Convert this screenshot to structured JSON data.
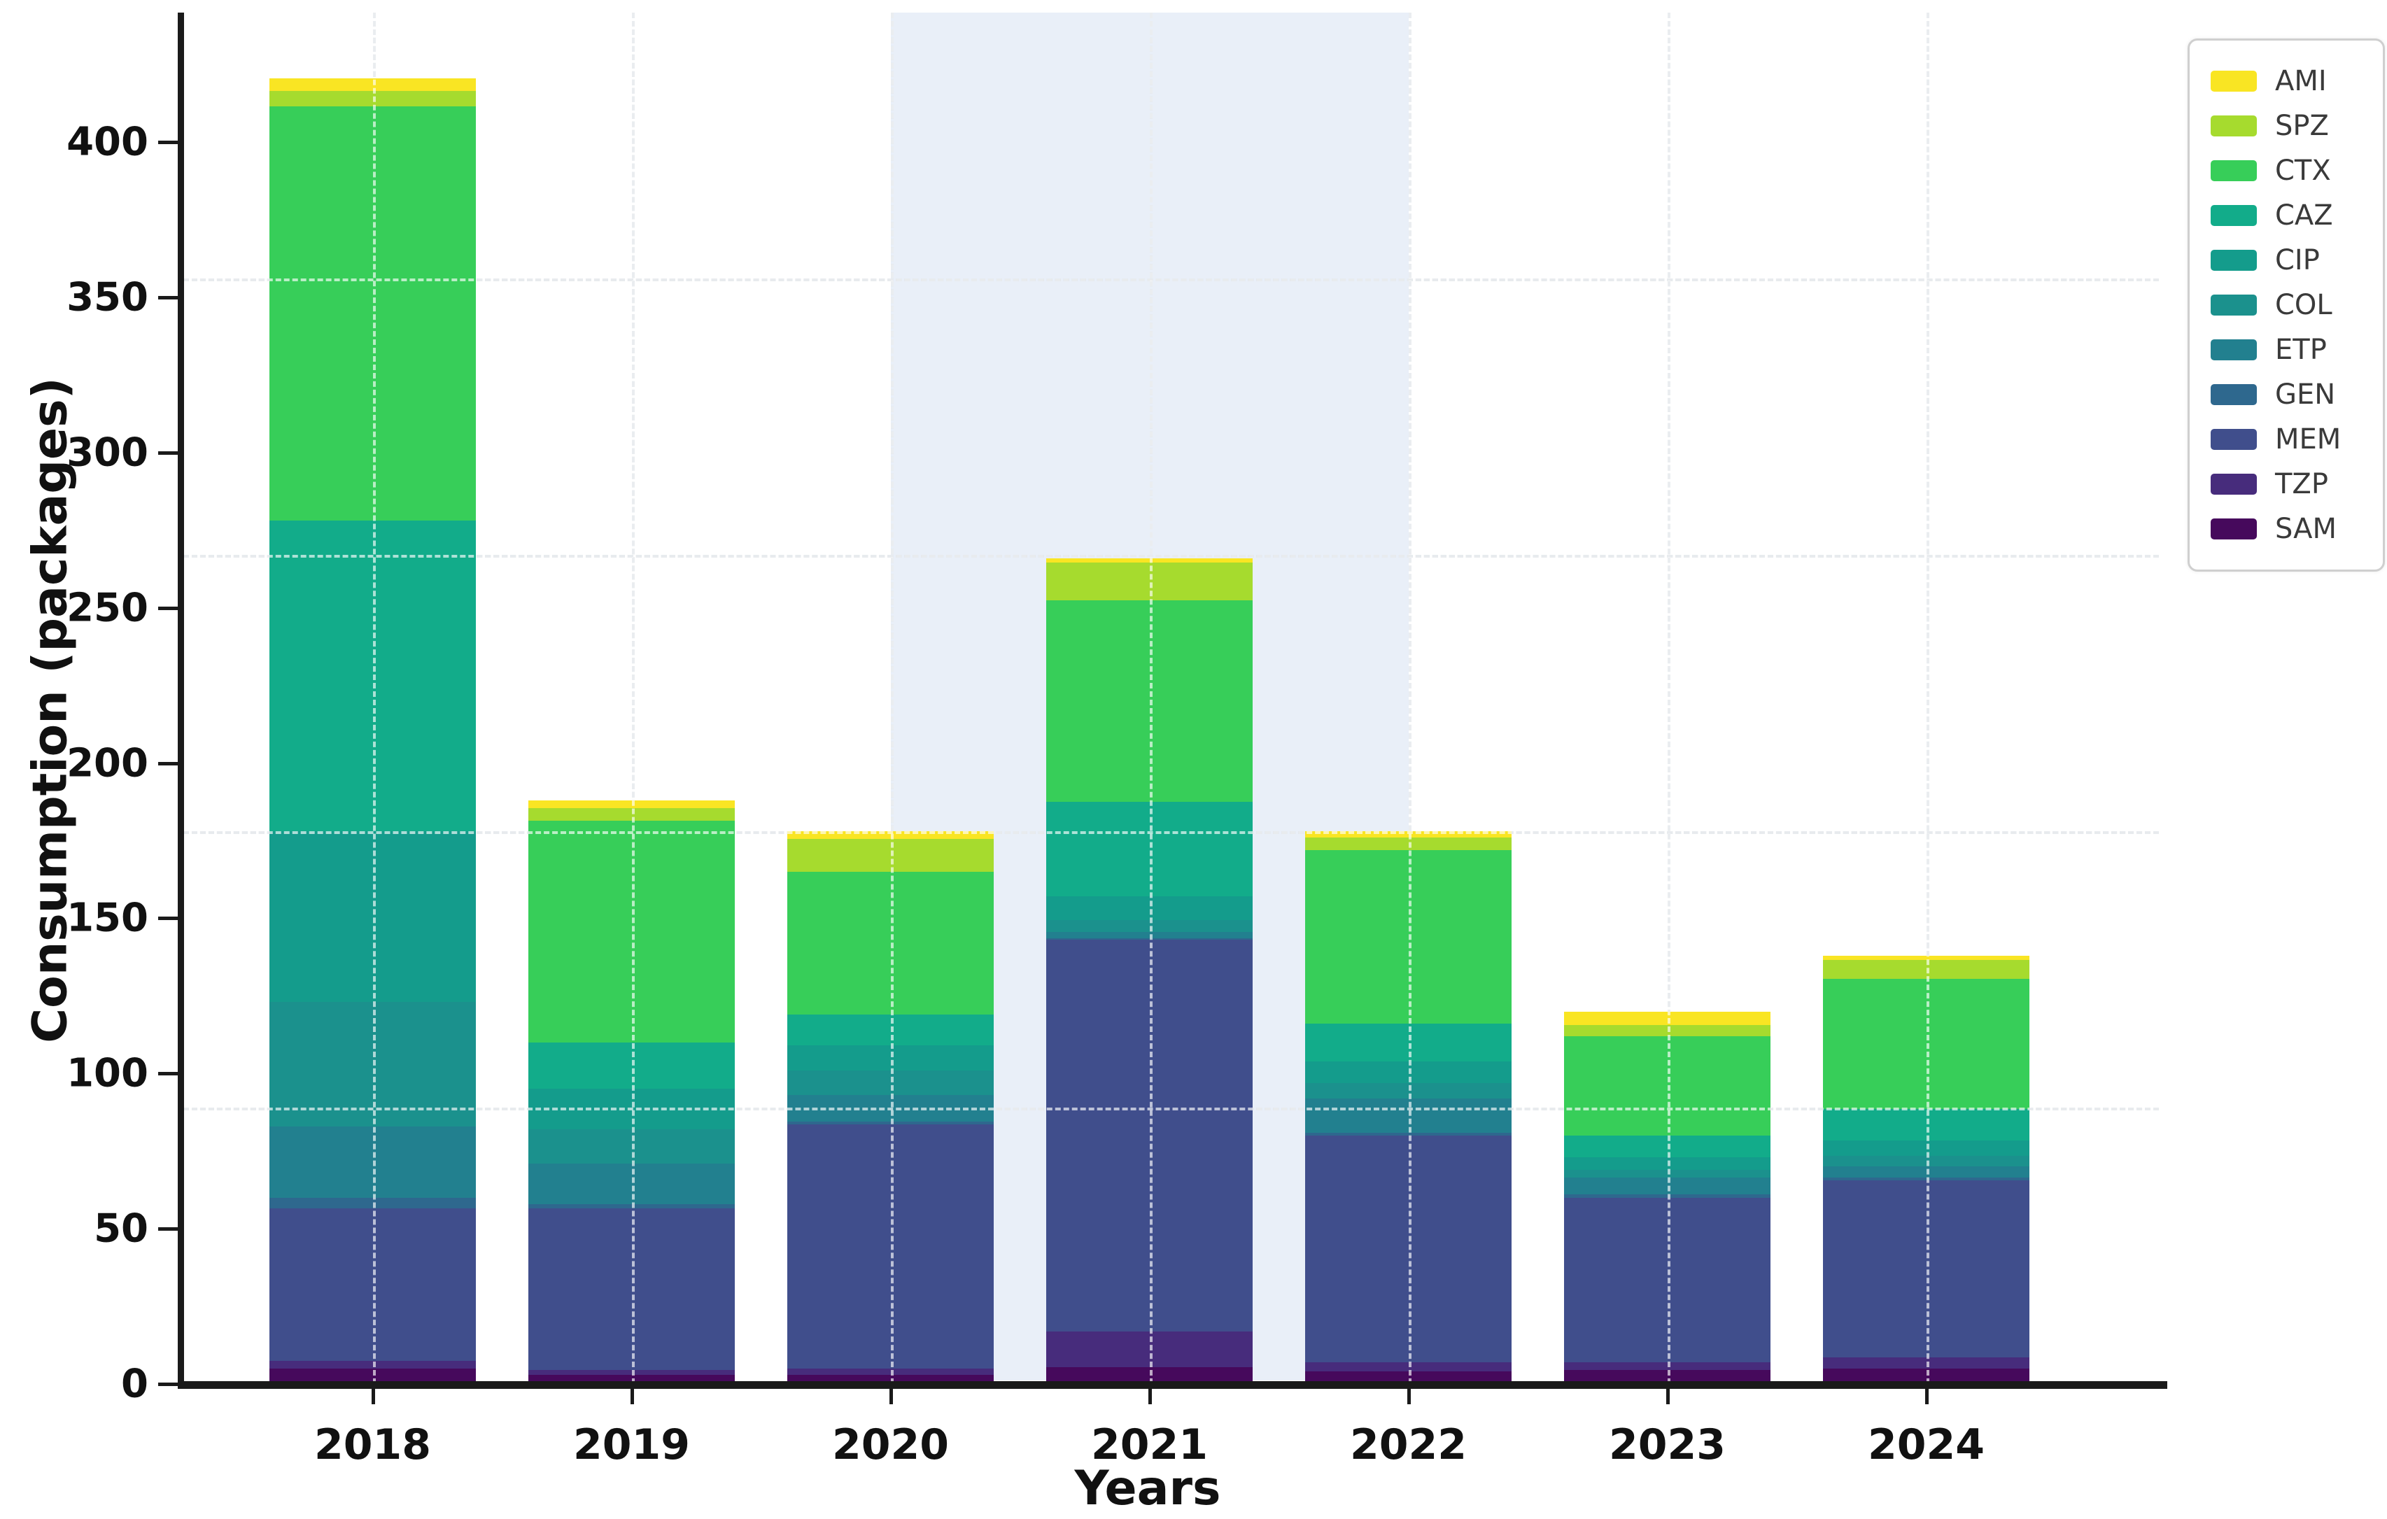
{
  "figure": {
    "background": "#ffffff",
    "x_axis_title": "Years",
    "y_axis_title": "Consumption (packages)"
  },
  "chart_data": {
    "type": "bar",
    "stacked": true,
    "title": "",
    "xlabel": "Years",
    "ylabel": "Consumption (packages)",
    "categories": [
      "2018",
      "2019",
      "2020",
      "2021",
      "2022",
      "2023",
      "2024"
    ],
    "y_ticks": [
      0,
      50,
      100,
      150,
      200,
      250,
      300,
      350,
      400
    ],
    "ylim": [
      0,
      440
    ],
    "y_gridlines_dashed": [
      89,
      178,
      267,
      356
    ],
    "grid": "dashed",
    "legend_position": "upper-right-outside",
    "highlight_band": {
      "from_category": "2020",
      "to_category": "2022",
      "anchor": "category-centers",
      "color": "#e9eff8"
    },
    "series": [
      {
        "name": "AMI",
        "color": "#f9e523",
        "values": [
          4,
          2.5,
          2.5,
          1.5,
          2,
          4.5,
          1.5
        ]
      },
      {
        "name": "SPZ",
        "color": "#a6db2e",
        "values": [
          5,
          4,
          10.5,
          12,
          4,
          3.5,
          6
        ]
      },
      {
        "name": "CTX",
        "color": "#37ce59",
        "values": [
          133.5,
          71.5,
          46,
          65,
          56,
          32,
          42
        ]
      },
      {
        "name": "CAZ",
        "color": "#12ac8a",
        "values": [
          100,
          15,
          10,
          30.5,
          12,
          7,
          10
        ]
      },
      {
        "name": "CIP",
        "color": "#149c8c",
        "values": [
          55,
          13,
          8,
          7.5,
          7,
          4,
          5
        ]
      },
      {
        "name": "COL",
        "color": "#1b918d",
        "values": [
          40,
          11,
          8,
          4,
          5,
          2.5,
          3.5
        ]
      },
      {
        "name": "ETP",
        "color": "#22808f",
        "values": [
          23,
          13,
          8.5,
          2,
          11,
          5.5,
          3.5
        ]
      },
      {
        "name": "GEN",
        "color": "#2e688e",
        "values": [
          3.5,
          1.5,
          1,
          0.5,
          1,
          1,
          1
        ]
      },
      {
        "name": "MEM",
        "color": "#404e8c",
        "values": [
          49,
          52,
          78.5,
          126,
          73,
          53,
          57
        ]
      },
      {
        "name": "TZP",
        "color": "#472c7c",
        "values": [
          2.5,
          1.5,
          2,
          11.5,
          3,
          2.5,
          3.5
        ]
      },
      {
        "name": "SAM",
        "color": "#46095c",
        "values": [
          5,
          3,
          3,
          5.5,
          4,
          4.5,
          5
        ]
      }
    ],
    "totals": [
      420.5,
      188,
      178,
      266,
      178,
      120,
      138
    ]
  }
}
